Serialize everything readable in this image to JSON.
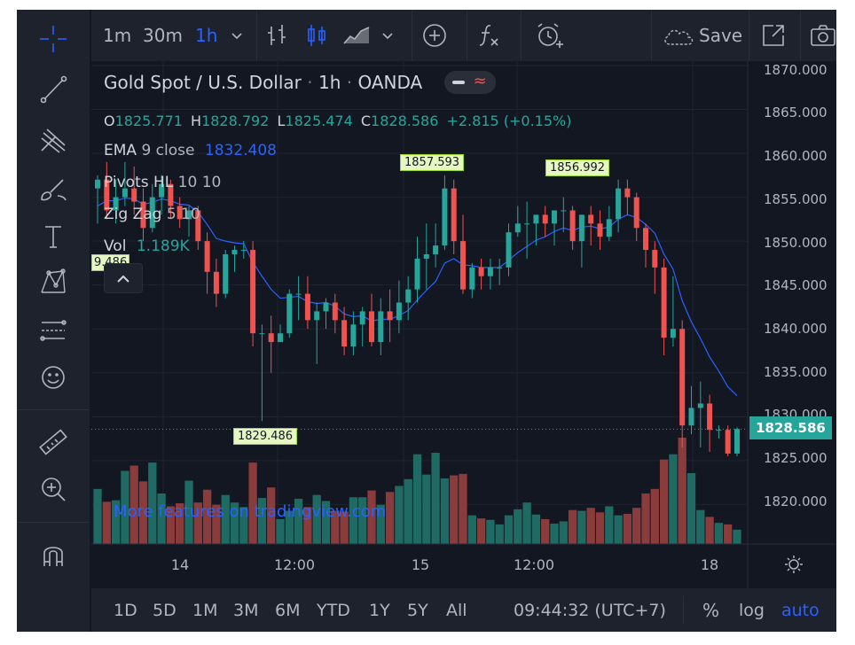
{
  "toolbar": {
    "intervals": [
      "1m",
      "30m",
      "1h"
    ],
    "active_interval": "1h",
    "save_label": "Save"
  },
  "legend": {
    "title": "Gold Spot / U.S. Dollar",
    "interval": "1h",
    "source": "OANDA",
    "ohlc": {
      "o_label": "O",
      "o": "1825.771",
      "h_label": "H",
      "h": "1828.792",
      "l_label": "L",
      "l": "1825.474",
      "c_label": "C",
      "c": "1828.586",
      "change": "+2.815 (+0.15%)"
    },
    "ema": {
      "name": "EMA",
      "params": "9 close",
      "value": "1832.408"
    },
    "pivots": {
      "name": "Pivots HL",
      "params": "10 10"
    },
    "zigzag": {
      "name": "Zig Zag",
      "params": "5 10"
    },
    "vol": {
      "name": "Vol",
      "value": "1.189K"
    }
  },
  "watermark": "More features on tradingview.com",
  "bottom_bar": {
    "ranges": [
      "1D",
      "5D",
      "1M",
      "3M",
      "6M",
      "YTD",
      "1Y",
      "5Y",
      "All"
    ],
    "clock": "09:44:32 (UTC+7)",
    "percent": "%",
    "log": "log",
    "auto": "auto"
  },
  "colors": {
    "up": "#26a69a",
    "down": "#ef5350",
    "ema": "#2962ff",
    "accent": "#2962ff",
    "background": "#131722"
  },
  "chart_data": {
    "type": "candlestick",
    "title": "Gold Spot / U.S. Dollar",
    "y_ticks": [
      "1870.000",
      "1865.000",
      "1860.000",
      "1855.000",
      "1850.000",
      "1845.000",
      "1840.000",
      "1835.000",
      "1830.000",
      "1825.000",
      "1820.000"
    ],
    "ylim": [
      1815.5,
      1870.5
    ],
    "x_ticks": [
      "14",
      "12:00",
      "15",
      "12:00",
      "18"
    ],
    "last_price": "1828.586",
    "annotations": {
      "pivot_high_1": "1857.593",
      "pivot_high_2": "1856.992",
      "pivot_low_1": "1829.486",
      "pivot_partial": "9.486"
    },
    "candles": [
      [
        1856.0,
        1857.5,
        1852.0,
        1857.0,
        0.73
      ],
      [
        1857.0,
        1859.0,
        1852.5,
        1853.5,
        0.56
      ],
      [
        1853.5,
        1857.0,
        1852.0,
        1855.0,
        0.58
      ],
      [
        1855.0,
        1859.0,
        1854.0,
        1856.0,
        0.97
      ],
      [
        1856.0,
        1858.5,
        1853.0,
        1854.5,
        1.04
      ],
      [
        1854.5,
        1856.0,
        1850.0,
        1851.5,
        0.83
      ],
      [
        1851.5,
        1856.5,
        1851.0,
        1855.0,
        1.08
      ],
      [
        1855.0,
        1857.5,
        1853.0,
        1856.5,
        0.67
      ],
      [
        1856.5,
        1857.0,
        1852.5,
        1854.0,
        0.5
      ],
      [
        1854.0,
        1855.0,
        1851.5,
        1852.5,
        0.54
      ],
      [
        1852.5,
        1854.0,
        1850.5,
        1853.5,
        0.84
      ],
      [
        1853.5,
        1854.0,
        1849.0,
        1850.0,
        0.55
      ],
      [
        1850.0,
        1851.0,
        1844.0,
        1846.5,
        0.72
      ],
      [
        1846.5,
        1848.0,
        1842.5,
        1844.0,
        0.52
      ],
      [
        1844.0,
        1849.0,
        1843.5,
        1848.5,
        0.65
      ],
      [
        1848.5,
        1849.5,
        1846.5,
        1849.0,
        0.55
      ],
      [
        1849.0,
        1850.0,
        1848.0,
        1849.0,
        0.49
      ],
      [
        1849.0,
        1850.0,
        1838.0,
        1839.5,
        1.08
      ],
      [
        1839.5,
        1840.5,
        1829.5,
        1839.5,
        0.61
      ],
      [
        1839.5,
        1841.5,
        1835.0,
        1838.5,
        0.75
      ],
      [
        1838.5,
        1840.5,
        1838.5,
        1839.5,
        0.33
      ],
      [
        1839.5,
        1844.5,
        1839.0,
        1844.0,
        0.44
      ],
      [
        1844.0,
        1846.0,
        1841.0,
        1844.0,
        0.6
      ],
      [
        1844.0,
        1846.0,
        1840.0,
        1841.0,
        0.49
      ],
      [
        1841.0,
        1843.0,
        1836.0,
        1842.0,
        0.65
      ],
      [
        1842.0,
        1843.5,
        1840.0,
        1843.0,
        0.57
      ],
      [
        1843.0,
        1844.0,
        1839.5,
        1841.0,
        0.44
      ],
      [
        1841.0,
        1842.5,
        1837.0,
        1838.0,
        0.43
      ],
      [
        1838.0,
        1842.0,
        1837.0,
        1840.5,
        0.62
      ],
      [
        1840.5,
        1842.5,
        1838.0,
        1842.0,
        0.62
      ],
      [
        1842.0,
        1844.0,
        1838.0,
        1838.5,
        0.71
      ],
      [
        1838.5,
        1843.5,
        1837.0,
        1842.0,
        0.52
      ],
      [
        1842.0,
        1844.5,
        1838.5,
        1841.0,
        0.69
      ],
      [
        1841.0,
        1845.5,
        1839.5,
        1843.0,
        0.77
      ],
      [
        1843.0,
        1846.0,
        1841.0,
        1844.5,
        0.86
      ],
      [
        1844.5,
        1850.5,
        1843.0,
        1848.0,
        1.19
      ],
      [
        1848.0,
        1852.0,
        1844.5,
        1848.5,
        0.92
      ],
      [
        1848.5,
        1852.0,
        1847.0,
        1849.5,
        1.21
      ],
      [
        1849.5,
        1857.5,
        1849.0,
        1856.0,
        0.87
      ],
      [
        1856.0,
        1857.0,
        1848.5,
        1850.0,
        0.91
      ],
      [
        1850.0,
        1853.0,
        1844.0,
        1844.5,
        0.93
      ],
      [
        1844.5,
        1847.5,
        1843.5,
        1847.0,
        0.38
      ],
      [
        1847.0,
        1848.0,
        1844.5,
        1846.0,
        0.34
      ],
      [
        1846.0,
        1848.0,
        1844.5,
        1847.0,
        0.32
      ],
      [
        1847.0,
        1848.0,
        1845.0,
        1847.0,
        0.26
      ],
      [
        1847.0,
        1852.0,
        1846.0,
        1851.0,
        0.38
      ],
      [
        1851.0,
        1854.0,
        1850.5,
        1852.0,
        0.46
      ],
      [
        1852.0,
        1854.5,
        1848.0,
        1852.0,
        0.55
      ],
      [
        1852.0,
        1853.0,
        1849.5,
        1853.0,
        0.39
      ],
      [
        1853.0,
        1854.0,
        1850.5,
        1852.0,
        0.33
      ],
      [
        1852.0,
        1853.0,
        1849.5,
        1853.5,
        0.27
      ],
      [
        1853.5,
        1855.0,
        1851.0,
        1853.5,
        0.3
      ],
      [
        1853.5,
        1854.0,
        1849.0,
        1850.0,
        0.45
      ],
      [
        1850.0,
        1853.0,
        1847.0,
        1853.0,
        0.44
      ],
      [
        1853.0,
        1854.0,
        1849.5,
        1852.0,
        0.48
      ],
      [
        1852.0,
        1853.5,
        1849.0,
        1850.5,
        0.42
      ],
      [
        1850.5,
        1854.0,
        1850.0,
        1852.5,
        0.5
      ],
      [
        1852.5,
        1857.0,
        1851.0,
        1856.0,
        0.38
      ],
      [
        1856.0,
        1857.0,
        1853.0,
        1855.0,
        0.4
      ],
      [
        1855.0,
        1855.5,
        1850.0,
        1851.5,
        0.48
      ],
      [
        1851.5,
        1852.0,
        1847.0,
        1849.0,
        0.67
      ],
      [
        1849.0,
        1850.0,
        1844.0,
        1847.0,
        0.73
      ],
      [
        1847.0,
        1848.0,
        1837.0,
        1839.0,
        1.12
      ],
      [
        1839.0,
        1846.0,
        1838.0,
        1840.0,
        1.19
      ],
      [
        1840.0,
        1841.0,
        1826.5,
        1829.0,
        1.41
      ],
      [
        1829.0,
        1833.5,
        1828.0,
        1831.0,
        0.94
      ],
      [
        1831.0,
        1834.0,
        1826.5,
        1831.5,
        0.45
      ],
      [
        1831.5,
        1832.5,
        1826.0,
        1828.5,
        0.36
      ],
      [
        1828.5,
        1829.0,
        1827.5,
        1828.5,
        0.28
      ],
      [
        1828.5,
        1829.0,
        1825.5,
        1825.8,
        0.26
      ],
      [
        1825.8,
        1828.8,
        1825.5,
        1828.6,
        0.19
      ]
    ],
    "ema9": [
      1854.0,
      1854.6,
      1854.6,
      1854.9,
      1854.8,
      1854.2,
      1854.4,
      1854.8,
      1854.6,
      1854.2,
      1854.1,
      1853.3,
      1851.9,
      1850.3,
      1850.0,
      1849.8,
      1849.7,
      1847.6,
      1846.0,
      1844.5,
      1843.5,
      1843.6,
      1843.7,
      1843.1,
      1842.9,
      1843.0,
      1842.6,
      1841.7,
      1841.4,
      1841.5,
      1840.9,
      1841.1,
      1841.1,
      1841.5,
      1842.1,
      1843.3,
      1844.4,
      1845.4,
      1847.5,
      1848.0,
      1847.3,
      1847.2,
      1847.0,
      1847.0,
      1847.0,
      1847.8,
      1848.7,
      1849.4,
      1850.1,
      1850.5,
      1851.1,
      1851.5,
      1851.2,
      1851.6,
      1851.7,
      1851.4,
      1851.6,
      1852.5,
      1853.0,
      1852.7,
      1851.9,
      1850.9,
      1848.5,
      1846.8,
      1843.2,
      1840.8,
      1838.9,
      1836.8,
      1835.2,
      1833.4,
      1832.4
    ]
  }
}
